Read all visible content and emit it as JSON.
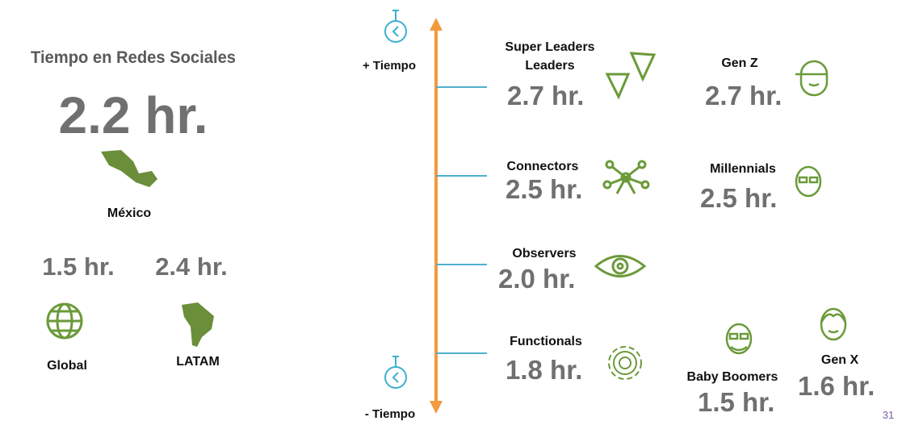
{
  "header": {
    "title": "Tiempo en Redes Sociales"
  },
  "mexico": {
    "value": "2.2 hr.",
    "label": "México"
  },
  "regions": [
    {
      "value": "1.5 hr.",
      "label": "Global"
    },
    {
      "value": "2.4 hr.",
      "label": "LATAM"
    }
  ],
  "axis": {
    "top": "+ Tiempo",
    "bottom": "- Tiempo"
  },
  "segments": [
    {
      "labels": [
        "Super Leaders",
        "Leaders"
      ],
      "value": "2.7 hr."
    },
    {
      "labels": [
        "Connectors"
      ],
      "value": "2.5 hr."
    },
    {
      "labels": [
        "Observers"
      ],
      "value": "2.0 hr."
    },
    {
      "labels": [
        "Functionals"
      ],
      "value": "1.8 hr."
    }
  ],
  "generations": [
    {
      "label": "Gen Z",
      "value": "2.7 hr."
    },
    {
      "label": "Millennials",
      "value": "2.5 hr."
    },
    {
      "label": "Baby Boomers",
      "value": "1.5 hr."
    },
    {
      "label": "Gen X",
      "value": "1.6 hr."
    }
  ],
  "page_number": "31"
}
